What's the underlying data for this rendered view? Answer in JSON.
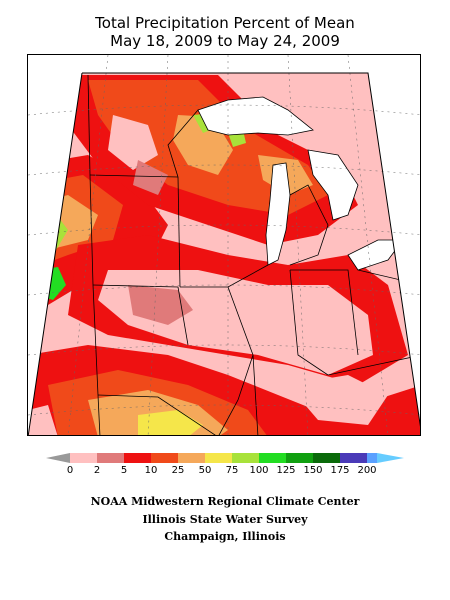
{
  "title": {
    "line1": "Total Precipitation Percent of Mean",
    "line2": "May 18, 2009 to May 24, 2009"
  },
  "colors": {
    "c0_2": "#ffc0c0",
    "c2_5": "#e07a7a",
    "c5_10": "#ee1111",
    "c10_25": "#f04a1a",
    "c25_50": "#f5a85a",
    "c50_75": "#f5e64a",
    "c75_100": "#a8e23a",
    "c100_125": "#22dd22",
    "c125_150": "#10a010",
    "c150_175": "#0a6a0a",
    "c175_200": "#4a3ab8",
    "c200_up": "#5aa0ff",
    "under_arrow": "#999999",
    "over_arrow": "#66ccff"
  },
  "legend": {
    "ticks": [
      "0",
      "2",
      "5",
      "10",
      "25",
      "50",
      "75",
      "100",
      "125",
      "150",
      "175",
      "200"
    ]
  },
  "credits": {
    "line1": "NOAA Midwestern Regional Climate Center",
    "line2": "Illinois State Water Survey",
    "line3": "Champaign, Illinois"
  }
}
